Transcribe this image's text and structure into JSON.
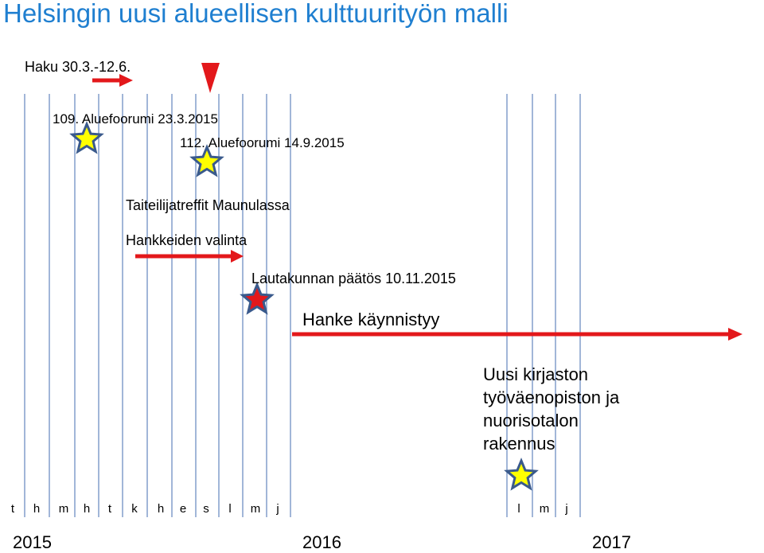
{
  "title": "Helsingin uusi alueellisen kulttuurityön malli",
  "events": {
    "haku": "Haku 30.3.-12.6.",
    "forum1": "109. Aluefoorumi 23.3.2015",
    "forum2": "112. Aluefoorumi 14.9.2015",
    "taiteilija": "Taiteilijatreffit Maunulassa",
    "hankkeet": "Hankkeiden valinta",
    "lautakunta": "Lautakunnan päätös 10.11.2015",
    "hanke": "Hanke käynnistyy",
    "rakennus": [
      "Uusi kirjaston",
      "työväenopiston ja",
      "nuorisotalon",
      "rakennus"
    ]
  },
  "months": [
    "t",
    "h",
    "m",
    "h",
    "t",
    "k",
    "h",
    "e",
    "s",
    "l",
    "m",
    "j",
    "l",
    "m",
    "j"
  ],
  "years": [
    "2015",
    "2016",
    "2017"
  ],
  "colors": {
    "title": "#1f7fd0",
    "gridline": "#6f8fc4",
    "arrow": "#e3181b",
    "star_yellow": "#ffff00",
    "star_red": "#e3181b",
    "star_outline": "#3a5a8c"
  }
}
